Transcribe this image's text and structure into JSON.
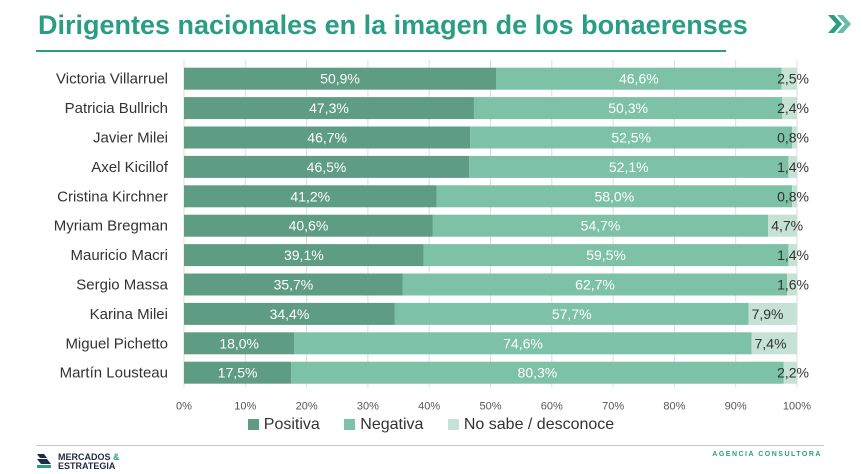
{
  "title": "Dirigentes nacionales en la imagen de los bonaerenses",
  "chart_data": {
    "type": "bar",
    "orientation": "horizontal",
    "stacked": true,
    "title": "Dirigentes nacionales en la imagen de los bonaerenses",
    "categories": [
      "Victoria Villarruel",
      "Patricia Bullrich",
      "Javier Milei",
      "Axel Kicillof",
      "Cristina Kirchner",
      "Myriam Bregman",
      "Mauricio Macri",
      "Sergio Massa",
      "Karina Milei",
      "Miguel Pichetto",
      "Martín Lousteau"
    ],
    "series": [
      {
        "name": "Positiva",
        "color": "#5e9c83",
        "values": [
          50.9,
          47.3,
          46.7,
          46.5,
          41.2,
          40.6,
          39.1,
          35.7,
          34.4,
          18.0,
          17.5
        ],
        "labels": [
          "50,9%",
          "47,3%",
          "46,7%",
          "46,5%",
          "41,2%",
          "40,6%",
          "39,1%",
          "35,7%",
          "34,4%",
          "18,0%",
          "17,5%"
        ]
      },
      {
        "name": "Negativa",
        "color": "#7dc1a6",
        "values": [
          46.6,
          50.3,
          52.5,
          52.1,
          58.0,
          54.7,
          59.5,
          62.7,
          57.7,
          74.6,
          80.3
        ],
        "labels": [
          "46,6%",
          "50,3%",
          "52,5%",
          "52,1%",
          "58,0%",
          "54,7%",
          "59,5%",
          "62,7%",
          "57,7%",
          "74,6%",
          "80,3%"
        ]
      },
      {
        "name": "No sabe / desconoce",
        "color": "#c5e2d5",
        "values": [
          2.5,
          2.4,
          0.8,
          1.4,
          0.8,
          4.7,
          1.4,
          1.6,
          7.9,
          7.4,
          2.2
        ],
        "labels": [
          "2,5%",
          "2,4%",
          "0,8%",
          "1,4%",
          "0,8%",
          "4,7%",
          "1,4%",
          "1,6%",
          "7,9%",
          "7,4%",
          "2,2%"
        ]
      }
    ],
    "xlim": [
      0,
      100
    ],
    "xticks": [
      "0%",
      "10%",
      "20%",
      "30%",
      "40%",
      "50%",
      "60%",
      "70%",
      "80%",
      "90%",
      "100%"
    ],
    "grid": true,
    "legend": "bottom"
  },
  "footer": {
    "brand_line1": "MERCADOS",
    "brand_amp": "&",
    "brand_line2": "ESTRATEGIA",
    "consultora": "AGENCIA CONSULTORA"
  },
  "colors": {
    "accent": "#2a9d85",
    "brand_dark": "#1f2a44"
  }
}
